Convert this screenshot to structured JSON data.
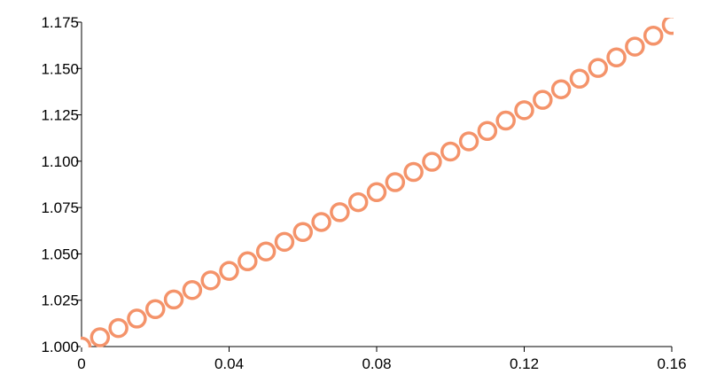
{
  "chart_data": {
    "type": "scatter",
    "title": "",
    "xlabel": "",
    "ylabel": "",
    "xlim": [
      0,
      0.16
    ],
    "ylim": [
      1.0,
      1.175
    ],
    "xticks": [
      "0",
      "0.04",
      "0.08",
      "0.12",
      "0.16"
    ],
    "yticks": [
      "1.000",
      "1.025",
      "1.050",
      "1.075",
      "1.100",
      "1.125",
      "1.150",
      "1.175"
    ],
    "grid": false,
    "legend": "none",
    "marker": "open-circle",
    "color": "#f4936a",
    "series": [
      {
        "x": [
          0,
          0.005,
          0.01,
          0.015,
          0.02,
          0.025,
          0.03,
          0.035,
          0.04,
          0.045,
          0.05,
          0.055,
          0.06,
          0.065,
          0.07,
          0.075,
          0.08,
          0.085,
          0.09,
          0.095,
          0.1,
          0.105,
          0.11,
          0.115,
          0.12,
          0.125,
          0.13,
          0.135,
          0.14,
          0.145,
          0.15,
          0.155,
          0.16
        ],
        "y": [
          1.0,
          1.005,
          1.01,
          1.0151,
          1.0202,
          1.0254,
          1.0305,
          1.0357,
          1.0408,
          1.046,
          1.0513,
          1.0565,
          1.0618,
          1.0672,
          1.0725,
          1.0779,
          1.0833,
          1.0887,
          1.0942,
          1.0997,
          1.1052,
          1.1107,
          1.1163,
          1.1219,
          1.1275,
          1.1331,
          1.1388,
          1.1445,
          1.1503,
          1.156,
          1.1618,
          1.1677,
          1.1735
        ]
      }
    ]
  }
}
